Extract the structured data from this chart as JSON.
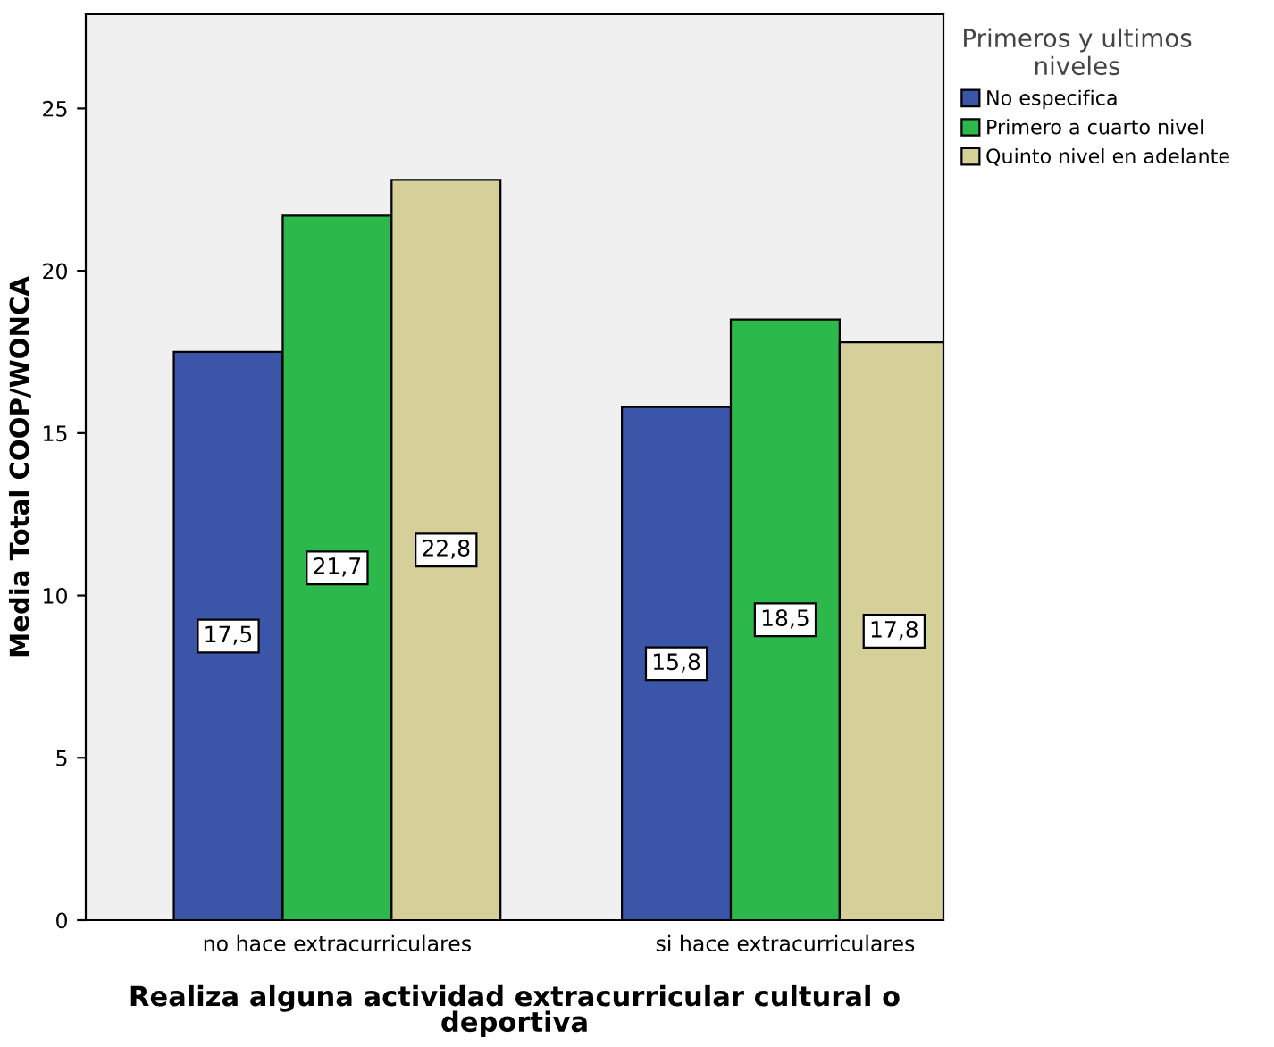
{
  "chart_data": {
    "type": "bar",
    "categories": [
      "no hace extracurriculares",
      "si hace extracurriculares"
    ],
    "xlabel": "Realiza alguna actividad extracurricular cultural o\ndeportiva",
    "ylabel": "Media Total COOP/WONCA",
    "legend_title": "Primeros y ultimos\nniveles",
    "legend": "top right",
    "series": [
      {
        "name": "No especifica",
        "color": "#3b55a8",
        "values": [
          17.5,
          15.8
        ],
        "value_labels": [
          "17,5",
          "15,8"
        ]
      },
      {
        "name": "Primero a cuarto nivel",
        "color": "#2db84b",
        "values": [
          21.7,
          18.5
        ],
        "value_labels": [
          "21,7",
          "18,5"
        ]
      },
      {
        "name": "Quinto nivel en adelante",
        "color": "#d5cf9a",
        "values": [
          22.8,
          17.8
        ],
        "value_labels": [
          "22,8",
          "17,8"
        ]
      }
    ],
    "ylim": [
      0,
      27.9
    ],
    "yticks": [
      0,
      5,
      10,
      15,
      20,
      25
    ],
    "grid": false
  }
}
